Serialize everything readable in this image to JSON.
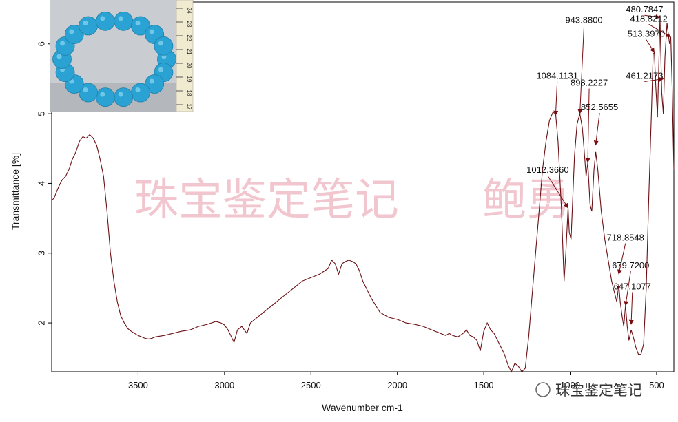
{
  "colors": {
    "spectrum": "#6b0f14",
    "arrow": "#7a0c10",
    "watermark": "#f2c6cf",
    "bead": "#2aa3d4"
  },
  "watermark": {
    "main": "珠宝鉴定笔记",
    "name": "鲍勇",
    "corner": "珠宝鉴定笔记"
  },
  "inset_photo": {
    "subject": "turquoise bead bracelet on ruler",
    "ruler_ticks": [
      "24",
      "23",
      "22",
      "21",
      "20",
      "19",
      "18",
      "17"
    ]
  },
  "chart_data": {
    "type": "line",
    "xlabel": "Wavenumber cm-1",
    "ylabel": "Transmittance [%]",
    "xlim": [
      4000,
      400
    ],
    "ylim": [
      1.3,
      6.6
    ],
    "x_reversed": true,
    "grid": false,
    "x_ticks": [
      "3500",
      "3000",
      "2500",
      "2000",
      "1500",
      "1000",
      "500"
    ],
    "y_ticks": [
      "2",
      "3",
      "4",
      "5",
      "6"
    ],
    "series": [
      {
        "points": [
          [
            4000,
            3.75
          ],
          [
            3985,
            3.8
          ],
          [
            3960,
            3.95
          ],
          [
            3940,
            4.05
          ],
          [
            3920,
            4.1
          ],
          [
            3900,
            4.2
          ],
          [
            3880,
            4.35
          ],
          [
            3860,
            4.45
          ],
          [
            3840,
            4.6
          ],
          [
            3820,
            4.67
          ],
          [
            3800,
            4.65
          ],
          [
            3780,
            4.7
          ],
          [
            3760,
            4.65
          ],
          [
            3740,
            4.55
          ],
          [
            3720,
            4.35
          ],
          [
            3700,
            4.1
          ],
          [
            3680,
            3.6
          ],
          [
            3660,
            3.0
          ],
          [
            3640,
            2.6
          ],
          [
            3620,
            2.3
          ],
          [
            3600,
            2.1
          ],
          [
            3580,
            2.0
          ],
          [
            3560,
            1.92
          ],
          [
            3540,
            1.88
          ],
          [
            3520,
            1.85
          ],
          [
            3500,
            1.82
          ],
          [
            3480,
            1.8
          ],
          [
            3460,
            1.78
          ],
          [
            3440,
            1.77
          ],
          [
            3420,
            1.78
          ],
          [
            3400,
            1.8
          ],
          [
            3350,
            1.82
          ],
          [
            3300,
            1.85
          ],
          [
            3250,
            1.88
          ],
          [
            3200,
            1.9
          ],
          [
            3150,
            1.95
          ],
          [
            3100,
            1.98
          ],
          [
            3050,
            2.02
          ],
          [
            3020,
            2.0
          ],
          [
            3000,
            1.97
          ],
          [
            2980,
            1.9
          ],
          [
            2960,
            1.8
          ],
          [
            2945,
            1.72
          ],
          [
            2925,
            1.9
          ],
          [
            2900,
            1.95
          ],
          [
            2870,
            1.85
          ],
          [
            2850,
            2.0
          ],
          [
            2800,
            2.1
          ],
          [
            2750,
            2.2
          ],
          [
            2700,
            2.3
          ],
          [
            2650,
            2.4
          ],
          [
            2600,
            2.5
          ],
          [
            2550,
            2.6
          ],
          [
            2500,
            2.65
          ],
          [
            2450,
            2.7
          ],
          [
            2400,
            2.78
          ],
          [
            2380,
            2.9
          ],
          [
            2360,
            2.85
          ],
          [
            2340,
            2.7
          ],
          [
            2320,
            2.85
          ],
          [
            2300,
            2.88
          ],
          [
            2280,
            2.9
          ],
          [
            2260,
            2.88
          ],
          [
            2240,
            2.85
          ],
          [
            2220,
            2.75
          ],
          [
            2200,
            2.6
          ],
          [
            2150,
            2.35
          ],
          [
            2100,
            2.15
          ],
          [
            2050,
            2.08
          ],
          [
            2000,
            2.05
          ],
          [
            1950,
            2.0
          ],
          [
            1900,
            1.98
          ],
          [
            1850,
            1.95
          ],
          [
            1800,
            1.9
          ],
          [
            1750,
            1.85
          ],
          [
            1720,
            1.82
          ],
          [
            1700,
            1.85
          ],
          [
            1680,
            1.82
          ],
          [
            1650,
            1.8
          ],
          [
            1620,
            1.85
          ],
          [
            1600,
            1.9
          ],
          [
            1580,
            1.82
          ],
          [
            1560,
            1.8
          ],
          [
            1540,
            1.75
          ],
          [
            1520,
            1.6
          ],
          [
            1500,
            1.88
          ],
          [
            1480,
            2.0
          ],
          [
            1460,
            1.9
          ],
          [
            1440,
            1.85
          ],
          [
            1420,
            1.75
          ],
          [
            1400,
            1.65
          ],
          [
            1380,
            1.55
          ],
          [
            1360,
            1.4
          ],
          [
            1340,
            1.3
          ],
          [
            1320,
            1.42
          ],
          [
            1300,
            1.38
          ],
          [
            1280,
            1.3
          ],
          [
            1260,
            1.35
          ],
          [
            1240,
            1.8
          ],
          [
            1220,
            2.4
          ],
          [
            1200,
            3.0
          ],
          [
            1180,
            3.6
          ],
          [
            1160,
            4.2
          ],
          [
            1140,
            4.6
          ],
          [
            1120,
            4.9
          ],
          [
            1100,
            5.02
          ],
          [
            1084,
            5.0
          ],
          [
            1070,
            4.6
          ],
          [
            1050,
            3.6
          ],
          [
            1040,
            2.9
          ],
          [
            1035,
            2.6
          ],
          [
            1025,
            3.0
          ],
          [
            1012,
            3.65
          ],
          [
            1005,
            3.3
          ],
          [
            995,
            3.2
          ],
          [
            985,
            3.8
          ],
          [
            975,
            4.4
          ],
          [
            960,
            4.85
          ],
          [
            944,
            5.0
          ],
          [
            930,
            4.8
          ],
          [
            920,
            4.5
          ],
          [
            908,
            4.1
          ],
          [
            898,
            4.3
          ],
          [
            885,
            3.7
          ],
          [
            875,
            3.6
          ],
          [
            862,
            4.2
          ],
          [
            852,
            4.45
          ],
          [
            840,
            4.2
          ],
          [
            820,
            3.6
          ],
          [
            800,
            3.2
          ],
          [
            780,
            2.9
          ],
          [
            760,
            2.6
          ],
          [
            740,
            2.4
          ],
          [
            730,
            2.3
          ],
          [
            719,
            2.55
          ],
          [
            710,
            2.3
          ],
          [
            700,
            2.1
          ],
          [
            690,
            1.95
          ],
          [
            680,
            2.25
          ],
          [
            670,
            1.95
          ],
          [
            660,
            1.75
          ],
          [
            647,
            1.9
          ],
          [
            635,
            1.8
          ],
          [
            620,
            1.65
          ],
          [
            605,
            1.55
          ],
          [
            590,
            1.55
          ],
          [
            575,
            1.7
          ],
          [
            560,
            2.5
          ],
          [
            545,
            3.8
          ],
          [
            530,
            5.0
          ],
          [
            520,
            5.85
          ],
          [
            513,
            5.88
          ],
          [
            505,
            5.4
          ],
          [
            495,
            4.95
          ],
          [
            488,
            5.6
          ],
          [
            480,
            6.38
          ],
          [
            475,
            5.8
          ],
          [
            470,
            5.3
          ],
          [
            461,
            5.0
          ],
          [
            452,
            5.8
          ],
          [
            440,
            6.3
          ],
          [
            425,
            6.0
          ],
          [
            418,
            6.1
          ],
          [
            410,
            5.4
          ],
          [
            400,
            4.2
          ]
        ]
      }
    ],
    "annotations": [
      {
        "label": "1084.1131",
        "x": 1084.1131,
        "y": 4.98,
        "lx": 1075,
        "ly": 5.5
      },
      {
        "label": "1012.3660",
        "x": 1012.366,
        "y": 3.65,
        "lx": 1130,
        "ly": 4.15
      },
      {
        "label": "943.8800",
        "x": 943.88,
        "y": 5.0,
        "lx": 920,
        "ly": 6.3
      },
      {
        "label": "898.2227",
        "x": 898.2227,
        "y": 4.3,
        "lx": 890,
        "ly": 5.4
      },
      {
        "label": "852.5655",
        "x": 852.5655,
        "y": 4.55,
        "lx": 830,
        "ly": 5.05
      },
      {
        "label": "718.8548",
        "x": 718.8548,
        "y": 2.7,
        "lx": 680,
        "ly": 3.18
      },
      {
        "label": "679.7200",
        "x": 679.72,
        "y": 2.25,
        "lx": 650,
        "ly": 2.78
      },
      {
        "label": "647.1077",
        "x": 647.1077,
        "y": 1.98,
        "lx": 640,
        "ly": 2.48
      },
      {
        "label": "480.7847",
        "x": 480.7847,
        "y": 6.38,
        "lx": 570,
        "ly": 6.45
      },
      {
        "label": "418.8212",
        "x": 418.8212,
        "y": 6.1,
        "lx": 545,
        "ly": 6.32
      },
      {
        "label": "513.3970",
        "x": 513.397,
        "y": 5.88,
        "lx": 560,
        "ly": 6.1
      },
      {
        "label": "461.2173",
        "x": 461.2173,
        "y": 5.5,
        "lx": 570,
        "ly": 5.5
      }
    ]
  }
}
